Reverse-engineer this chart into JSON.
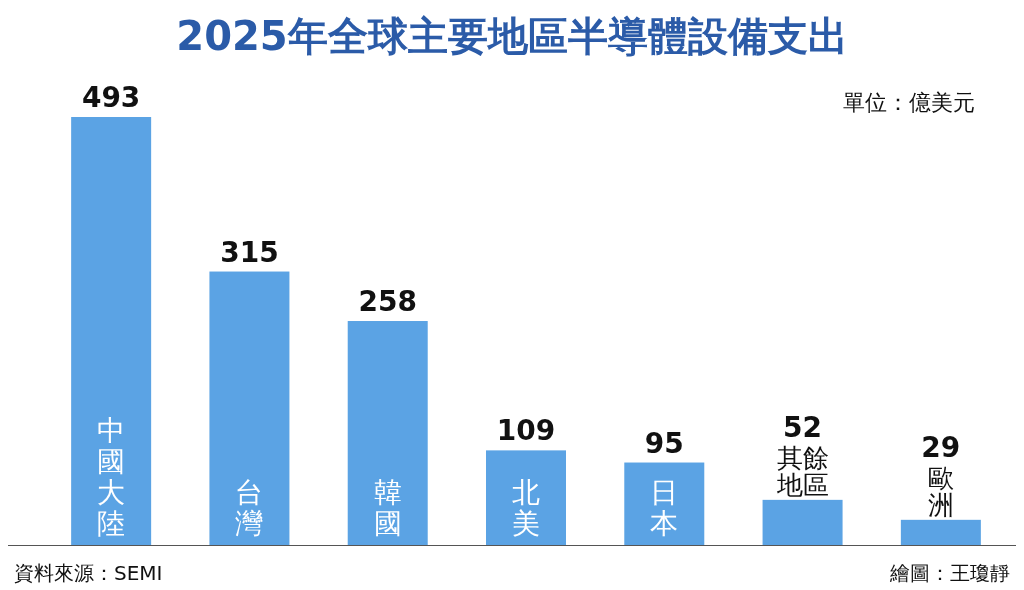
{
  "chart_data": {
    "type": "bar",
    "title": "2025年全球主要地區半導體設備支出",
    "categories": [
      "中國大陸",
      "台灣",
      "韓國",
      "北美",
      "日本",
      "其餘地區",
      "歐洲"
    ],
    "values": [
      493,
      315,
      258,
      109,
      95,
      52,
      29
    ],
    "color": "#5ba3e4",
    "data_labels": true,
    "annotations": [
      "單位：億美元",
      "資料來源：SEMI",
      "繪圖：王瓊靜"
    ]
  }
}
